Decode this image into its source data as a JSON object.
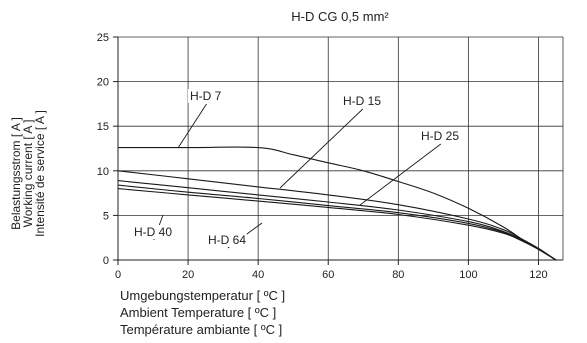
{
  "chart_data": {
    "type": "line",
    "title": "H-D  CG    0,5 mm²",
    "ylabel": [
      "Belastungsstrom [ A ]",
      "Working current [ A ]",
      "Intensité de service [ A ]"
    ],
    "xlabel": [
      "Umgebungstemperatur [ ºC ]",
      "Ambient Temperature [ ºC ]",
      "Température ambiante [ ºC ]"
    ],
    "xlim": [
      0,
      127
    ],
    "ylim": [
      0,
      25
    ],
    "x_ticks": [
      0,
      20,
      40,
      60,
      80,
      100,
      120
    ],
    "y_ticks": [
      0,
      5,
      10,
      15,
      20,
      25
    ],
    "grid": true,
    "series": [
      {
        "name": "H-D 7",
        "x": [
          0,
          20,
          40,
          50,
          60,
          70,
          80,
          90,
          100,
          110,
          115,
          120,
          125
        ],
        "y": [
          12.6,
          12.6,
          12.6,
          11.8,
          10.9,
          10.0,
          8.8,
          7.5,
          5.8,
          3.7,
          2.4,
          1.2,
          0
        ]
      },
      {
        "name": "H-D 15",
        "x": [
          0,
          20,
          40,
          60,
          80,
          100,
          110,
          115,
          120,
          125
        ],
        "y": [
          10.0,
          9.1,
          8.2,
          7.3,
          6.2,
          4.6,
          3.4,
          2.4,
          1.3,
          0
        ]
      },
      {
        "name": "H-D 25",
        "x": [
          0,
          20,
          40,
          60,
          80,
          100,
          110,
          115,
          120,
          125
        ],
        "y": [
          8.9,
          8.1,
          7.3,
          6.5,
          5.6,
          4.3,
          3.2,
          2.3,
          1.2,
          0
        ]
      },
      {
        "name": "H-D 40",
        "x": [
          0,
          20,
          40,
          60,
          80,
          100,
          110,
          115,
          120,
          125
        ],
        "y": [
          8.4,
          7.6,
          6.9,
          6.1,
          5.3,
          4.1,
          3.1,
          2.2,
          1.2,
          0
        ]
      },
      {
        "name": "H-D 64",
        "x": [
          0,
          20,
          40,
          60,
          80,
          100,
          110,
          115,
          120,
          125
        ],
        "y": [
          8.0,
          7.3,
          6.6,
          5.9,
          5.1,
          3.9,
          3.0,
          2.2,
          1.2,
          0
        ]
      }
    ],
    "annotations": [
      {
        "series": "H-D 7",
        "text": "H-D 7",
        "x": 35,
        "y": 12.6
      },
      {
        "series": "H-D 15",
        "text": "H-D 15",
        "x": 60,
        "y": 7.4
      },
      {
        "series": "H-D 25",
        "text": "H-D 25",
        "x": 82,
        "y": 5.8
      },
      {
        "series": "H-D 40",
        "text": "H-D 40",
        "x": 20,
        "y": 7.6
      },
      {
        "series": "H-D 64",
        "text": "H-D 64",
        "x": 40,
        "y": 6.6
      }
    ]
  }
}
